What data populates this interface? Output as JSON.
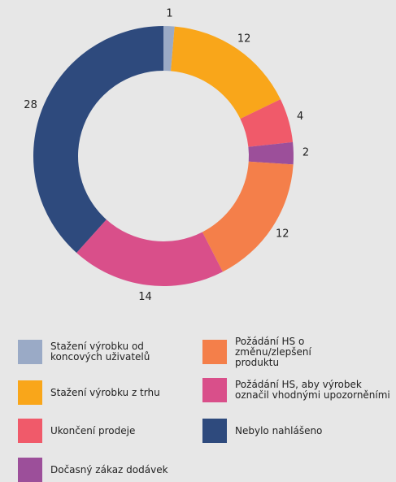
{
  "chart_data": {
    "type": "donut",
    "categories": [
      "Stažení výrobku od koncových uživatelů",
      "Stažení výrobku z trhu",
      "Ukončení prodeje",
      "Dočasný zákaz dodávek",
      "Požádání HS o změnu/zlepšení produktu",
      "Požádání HS, aby výrobek označil vhodnými upozorněními",
      "Nebylo nahlášeno"
    ],
    "values": [
      1,
      12,
      4,
      2,
      12,
      14,
      28
    ],
    "colors": [
      "#9aaac6",
      "#f9a61a",
      "#f05a6a",
      "#9c4f9a",
      "#f47f4a",
      "#d94f8a",
      "#2e4a7d"
    ],
    "legend": "bottom"
  }
}
